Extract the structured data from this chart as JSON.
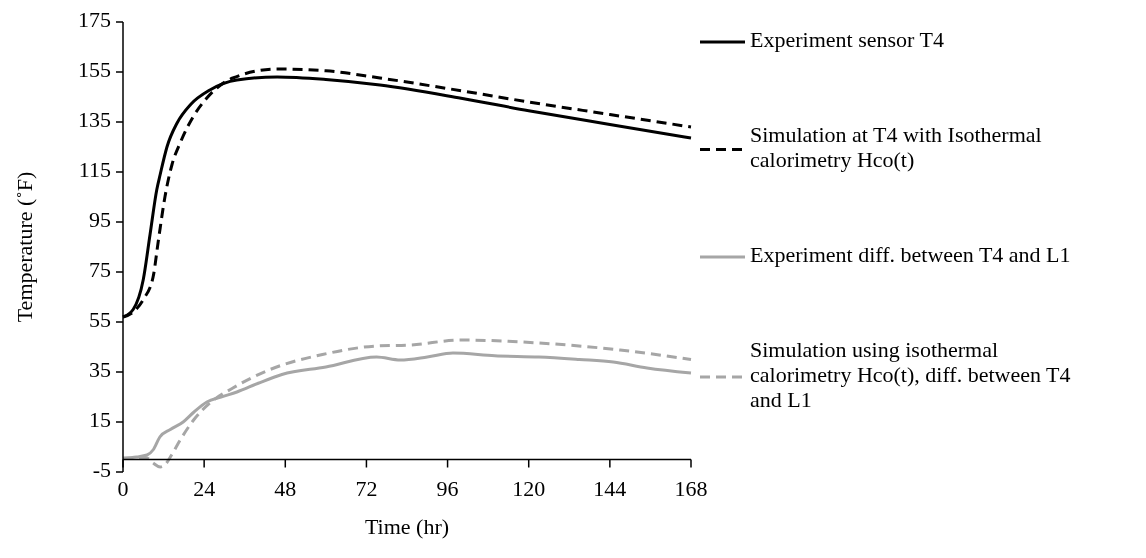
{
  "chart_data": {
    "type": "line",
    "xlabel": "Time (hr)",
    "ylabel": "Temperature (˚F)",
    "xlim": [
      0,
      168
    ],
    "xticks": [
      0,
      24,
      48,
      72,
      96,
      120,
      144,
      168
    ],
    "ylim": [
      -5,
      175
    ],
    "yticks": [
      -5,
      15,
      35,
      55,
      75,
      95,
      115,
      135,
      155,
      175
    ],
    "grid": false,
    "legend": "right",
    "marker": "none",
    "series": [
      {
        "name": "Experiment sensor T4",
        "color": "#000000",
        "line_style": "solid",
        "x": [
          0,
          3,
          6,
          8,
          10,
          11,
          13,
          16,
          20,
          25.7,
          33.7,
          45.6,
          60,
          76,
          100,
          120,
          144,
          168
        ],
        "values": [
          57,
          60,
          72,
          90,
          108,
          114,
          125,
          134.6,
          142,
          147.8,
          151.8,
          153,
          152,
          149.8,
          144.5,
          139.5,
          134,
          128.6
        ]
      },
      {
        "name": "Simulation at T4 with Isothermal calorimetry Hco(t)",
        "color": "#000000",
        "line_style": "dashed",
        "x": [
          0,
          3,
          6,
          8.9,
          10.5,
          12.4,
          14.5,
          16.9,
          20.7,
          24.8,
          32.5,
          45.6,
          60,
          76,
          100,
          120,
          144,
          168
        ],
        "values": [
          57,
          59,
          64,
          73,
          88,
          105,
          118,
          126.6,
          137,
          144.6,
          152.6,
          156.2,
          155.5,
          152.6,
          147.5,
          143,
          138,
          133
        ]
      },
      {
        "name": "Experiment diff. between T4 and L1",
        "color": "#a6a6a6",
        "line_style": "solid",
        "x": [
          0,
          4,
          7.1,
          9,
          10.9,
          14,
          17.8,
          21,
          24.8,
          29,
          33.7,
          40,
          47,
          60,
          75,
          82,
          90,
          97.6,
          110,
          123,
          135,
          145,
          155,
          168
        ],
        "values": [
          0.5,
          1,
          1.8,
          4,
          9,
          12,
          15,
          19,
          23,
          25,
          27,
          30.5,
          34,
          37,
          41,
          39.8,
          41,
          42.6,
          41.5,
          41,
          40,
          39,
          36.6,
          34.6
        ]
      },
      {
        "name": "Simulation using isothermal calorimetry Hco(t), diff. between T4 and L1",
        "color": "#a6a6a6",
        "line_style": "dashed",
        "x": [
          0,
          4,
          7,
          9,
          11,
          12.5,
          14,
          17,
          21,
          25.7,
          32.5,
          43.5,
          59,
          75,
          85,
          100,
          123,
          147,
          165,
          168
        ],
        "values": [
          0.5,
          0.6,
          0.6,
          -1.5,
          -3,
          -2,
          1,
          8,
          16,
          22.6,
          28.6,
          36,
          42,
          45.4,
          45.8,
          47.8,
          46.6,
          43.8,
          40.6,
          40
        ]
      }
    ]
  }
}
